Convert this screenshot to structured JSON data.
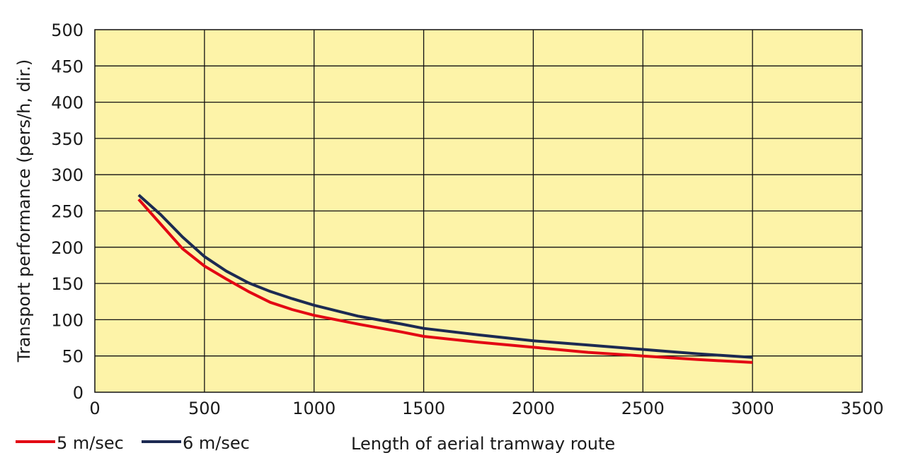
{
  "chart_data": {
    "type": "line",
    "title": "",
    "xlabel": "Length of aerial tramway route",
    "ylabel": "Transport performance (pers/h, dir.)",
    "xlim": [
      0,
      3500
    ],
    "ylim": [
      0,
      500
    ],
    "xticks": [
      0,
      500,
      1000,
      1500,
      2000,
      2500,
      3000,
      3500
    ],
    "yticks": [
      0,
      50,
      100,
      150,
      200,
      250,
      300,
      350,
      400,
      450,
      500
    ],
    "grid": true,
    "legend_position": "bottom-left",
    "plot_background": "#fdf3a8",
    "series": [
      {
        "name": "5 m/sec",
        "color": "#e30613",
        "points": [
          [
            200,
            266
          ],
          [
            300,
            232
          ],
          [
            400,
            198
          ],
          [
            500,
            174
          ],
          [
            600,
            156
          ],
          [
            700,
            139
          ],
          [
            800,
            124
          ],
          [
            900,
            114
          ],
          [
            1000,
            106
          ],
          [
            1200,
            94
          ],
          [
            1400,
            83
          ],
          [
            1500,
            77
          ],
          [
            1750,
            69
          ],
          [
            2000,
            62
          ],
          [
            2250,
            55
          ],
          [
            2500,
            50
          ],
          [
            2750,
            45
          ],
          [
            3000,
            41
          ]
        ]
      },
      {
        "name": "6 m/sec",
        "color": "#1c2a52",
        "points": [
          [
            200,
            272
          ],
          [
            300,
            245
          ],
          [
            400,
            214
          ],
          [
            500,
            187
          ],
          [
            600,
            167
          ],
          [
            700,
            151
          ],
          [
            800,
            139
          ],
          [
            900,
            129
          ],
          [
            1000,
            120
          ],
          [
            1200,
            105
          ],
          [
            1400,
            94
          ],
          [
            1500,
            88
          ],
          [
            1750,
            79
          ],
          [
            2000,
            71
          ],
          [
            2250,
            65
          ],
          [
            2500,
            59
          ],
          [
            2750,
            53
          ],
          [
            3000,
            48
          ]
        ]
      }
    ]
  }
}
